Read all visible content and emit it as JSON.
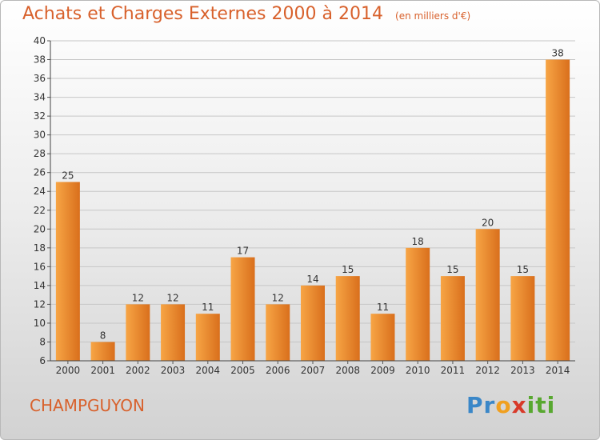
{
  "title": "Achats et Charges Externes 2000 à 2014",
  "unit_note": "(en milliers d'€)",
  "commune": "CHAMPGUYON",
  "logo": {
    "letters": [
      "P",
      "r",
      "o",
      "x",
      "i",
      "t",
      "i"
    ],
    "colors": [
      "#3a87c8",
      "#3a87c8",
      "#f0a020",
      "#d83a2a",
      "#58a830",
      "#58a830",
      "#58a830"
    ]
  },
  "colors": {
    "accent": "#d8612c",
    "bar_light": "#f7a545",
    "bar_dark": "#d96f1c"
  },
  "chart_data": {
    "type": "bar",
    "title": "Achats et Charges Externes 2000 à 2014",
    "subtitle": "(en milliers d'€)",
    "categories": [
      "2000",
      "2001",
      "2002",
      "2003",
      "2004",
      "2005",
      "2006",
      "2007",
      "2008",
      "2009",
      "2010",
      "2011",
      "2012",
      "2013",
      "2014"
    ],
    "values": [
      25,
      8,
      12,
      12,
      11,
      17,
      12,
      14,
      15,
      11,
      18,
      15,
      20,
      15,
      38
    ],
    "ylim": [
      6,
      40
    ],
    "yticks": [
      6,
      8,
      10,
      12,
      14,
      16,
      18,
      20,
      22,
      24,
      26,
      28,
      30,
      32,
      34,
      36,
      38,
      40
    ],
    "grid": true,
    "xlabel": "",
    "ylabel": ""
  }
}
